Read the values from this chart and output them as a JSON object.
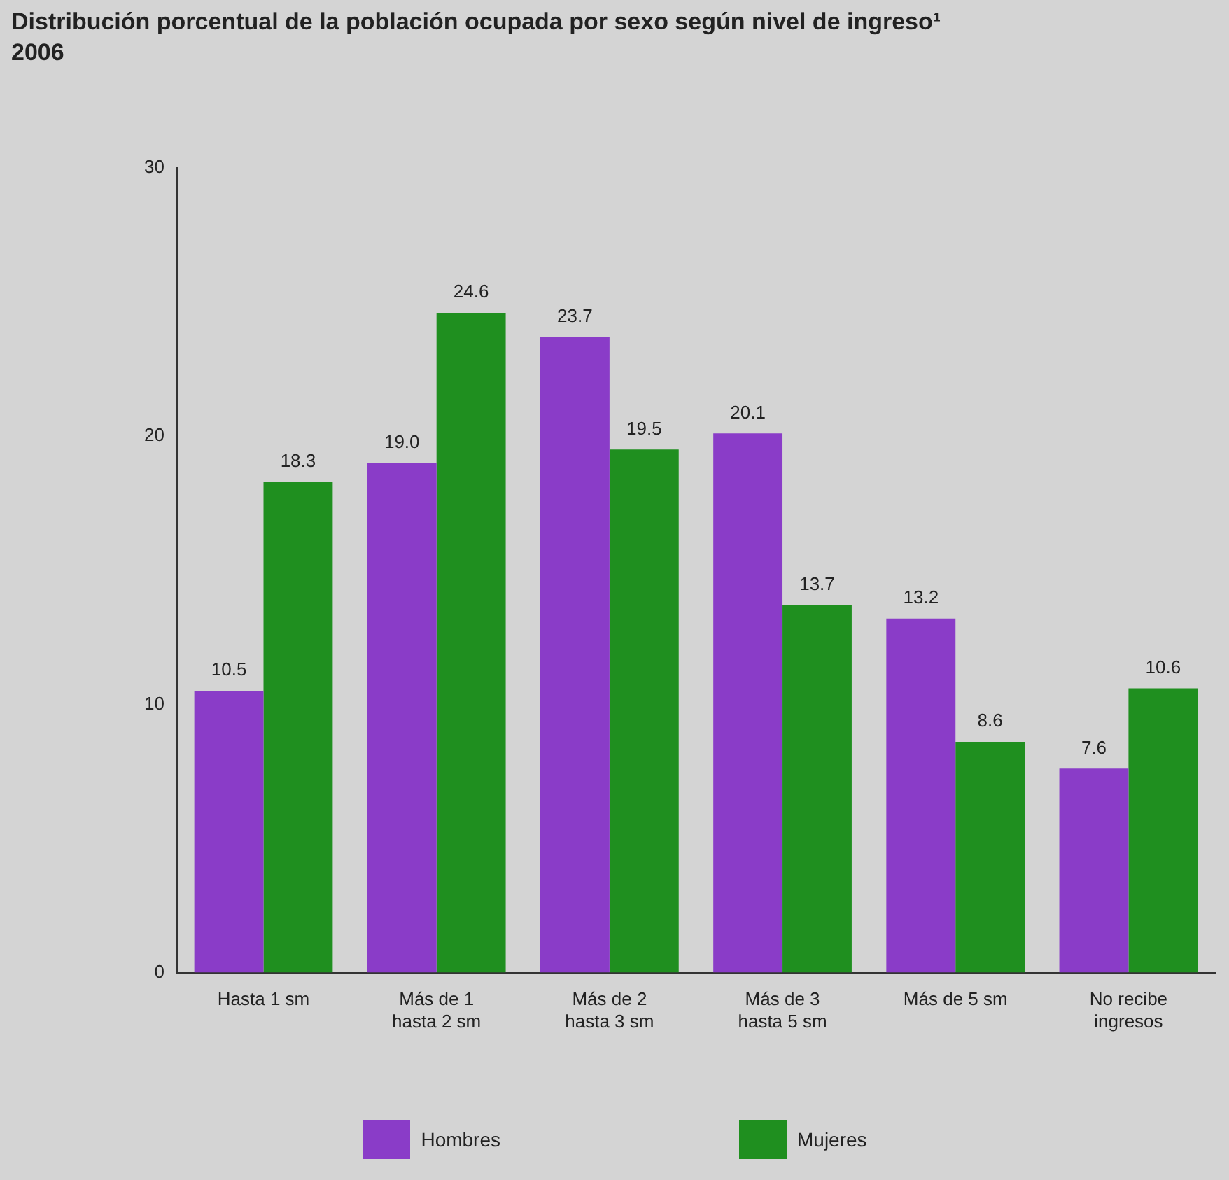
{
  "chart_data": {
    "type": "bar",
    "title": "Distribución porcentual de la población ocupada por sexo según nivel de ingreso¹",
    "subtitle": "2006",
    "categories": [
      "Hasta 1 sm",
      "Más de 1 hasta 2 sm",
      "Más de 2 hasta 3 sm",
      "Más de 3 hasta 5 sm",
      "Más de 5 sm",
      "No recibe ingresos"
    ],
    "series": [
      {
        "name": "Hombres",
        "color": "#8a3cc8",
        "values": [
          10.5,
          19.0,
          23.7,
          20.1,
          13.2,
          7.6
        ],
        "value_labels": [
          "10.5",
          "19.0",
          "23.7",
          "20.1",
          "13.2",
          "7.6"
        ]
      },
      {
        "name": "Mujeres",
        "color": "#1f8f1f",
        "values": [
          18.3,
          24.6,
          19.5,
          13.7,
          8.6,
          10.6
        ],
        "value_labels": [
          "18.3",
          "24.6",
          "19.5",
          "13.7",
          "8.6",
          "10.6"
        ]
      }
    ],
    "ylim": [
      0,
      30
    ],
    "yticks": [
      0,
      10,
      20,
      30
    ],
    "grid": false,
    "legend": "bottom"
  }
}
